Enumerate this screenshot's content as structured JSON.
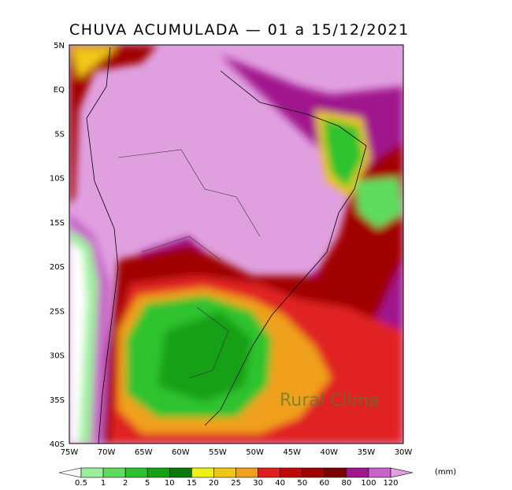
{
  "title": "CHUVA ACUMULADA — 01 a 15/12/2021",
  "lat_labels": [
    "5N",
    "EQ",
    "5S",
    "10S",
    "15S",
    "20S",
    "25S",
    "30S",
    "35S",
    "40S"
  ],
  "lon_labels": [
    "75W",
    "70W",
    "65W",
    "60W",
    "55W",
    "50W",
    "45W",
    "40W",
    "35W",
    "30W"
  ],
  "legend": {
    "levels": [
      0.5,
      1,
      2,
      5,
      10,
      15,
      20,
      25,
      30,
      40,
      50,
      60,
      80,
      100,
      120
    ],
    "colors": [
      "#ffffff",
      "#9cf09c",
      "#5fdc5f",
      "#2dc32d",
      "#15a015",
      "#0a780a",
      "#f0f014",
      "#f0c814",
      "#f0a01e",
      "#e02020",
      "#c00a0a",
      "#a00000",
      "#780000",
      "#a0148c",
      "#c864c8",
      "#e0a0e0"
    ],
    "unit": "(mm)"
  },
  "watermark": "Rural Clima"
}
